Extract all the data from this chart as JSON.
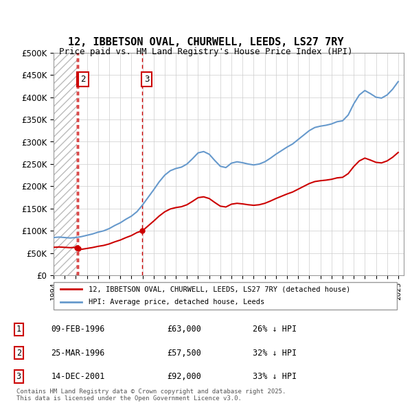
{
  "title": "12, IBBETSON OVAL, CHURWELL, LEEDS, LS27 7RY",
  "subtitle": "Price paid vs. HM Land Registry's House Price Index (HPI)",
  "ylabel_ticks": [
    "£0",
    "£50K",
    "£100K",
    "£150K",
    "£200K",
    "£250K",
    "£300K",
    "£350K",
    "£400K",
    "£450K",
    "£500K"
  ],
  "ylim": [
    0,
    500000
  ],
  "xlim_start": 1994.0,
  "xlim_end": 2025.5,
  "legend_line1": "12, IBBETSON OVAL, CHURWELL, LEEDS, LS27 7RY (detached house)",
  "legend_line2": "HPI: Average price, detached house, Leeds",
  "transactions": [
    {
      "num": 1,
      "date_str": "09-FEB-1996",
      "date_x": 1996.11,
      "price": 63000,
      "pct": "26%",
      "dir": "↓"
    },
    {
      "num": 2,
      "date_str": "25-MAR-1996",
      "date_x": 1996.23,
      "price": 57500,
      "pct": "32%",
      "dir": "↓"
    },
    {
      "num": 3,
      "date_str": "14-DEC-2001",
      "date_x": 2001.95,
      "price": 92000,
      "pct": "33%",
      "dir": "↓"
    }
  ],
  "footnote": "Contains HM Land Registry data © Crown copyright and database right 2025.\nThis data is licensed under the Open Government Licence v3.0.",
  "line_color_red": "#cc0000",
  "line_color_blue": "#6699cc",
  "hatch_color": "#cccccc",
  "grid_color": "#cccccc",
  "bg_color": "#ffffff"
}
